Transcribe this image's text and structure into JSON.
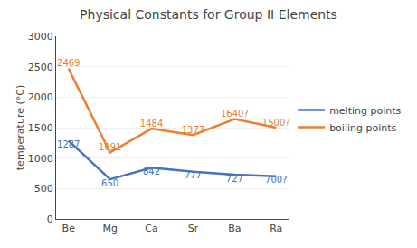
{
  "chart_data": {
    "type": "line",
    "title": "Physical Constants for Group II Elements",
    "ylabel": "temperature (°C)",
    "categories": [
      "Be",
      "Mg",
      "Ca",
      "Sr",
      "Ba",
      "Ra"
    ],
    "series": [
      {
        "name": "melting points",
        "color": "#4472C4",
        "values": [
          1287,
          650,
          842,
          777,
          727,
          700
        ],
        "value_labels": [
          "1287",
          "650",
          "842",
          "777",
          "727",
          "700?"
        ]
      },
      {
        "name": "boiling points",
        "color": "#ED7D31",
        "values": [
          2469,
          1091,
          1484,
          1377,
          1640,
          1500
        ],
        "value_labels": [
          "2469",
          "1091",
          "1484",
          "1377",
          "1640?",
          "1500?"
        ]
      }
    ],
    "ylim": [
      0,
      3000
    ],
    "yticks": [
      0,
      500,
      1000,
      1500,
      2000,
      2500,
      3000
    ],
    "grid": true,
    "legend": "right",
    "data_labels": true
  }
}
